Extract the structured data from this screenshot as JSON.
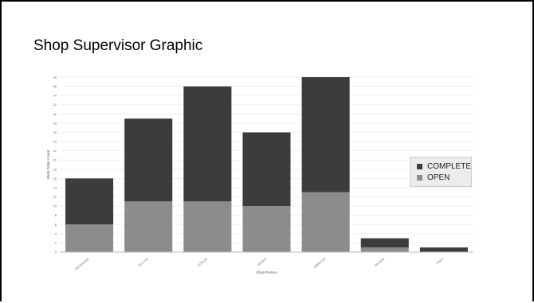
{
  "chart_data": {
    "type": "bar",
    "stacked": true,
    "title": "Shop Supervisor Graphic",
    "xlabel": "Shop Person",
    "ylabel": "Work Order Count",
    "categories": [
      "WILSON-BR",
      "JELLY16",
      "JCRUZ4",
      "HEDEN",
      "MIRIGY16",
      "WILSON",
      "TWC1"
    ],
    "series": [
      {
        "name": "OPEN",
        "color": "#8c8c8c",
        "values": [
          6,
          11,
          11,
          10,
          13,
          1,
          0
        ]
      },
      {
        "name": "COMPLETE",
        "color": "#3c3c3c",
        "values": [
          10,
          18,
          25,
          16,
          25,
          2,
          1
        ]
      }
    ],
    "ylim": [
      0,
      38
    ],
    "yticks": [
      0,
      2,
      4,
      6,
      8,
      10,
      12,
      14,
      16,
      18,
      20,
      22,
      24,
      26,
      28,
      30,
      32,
      34,
      36,
      38
    ],
    "grid": true,
    "legend_position": "right"
  }
}
